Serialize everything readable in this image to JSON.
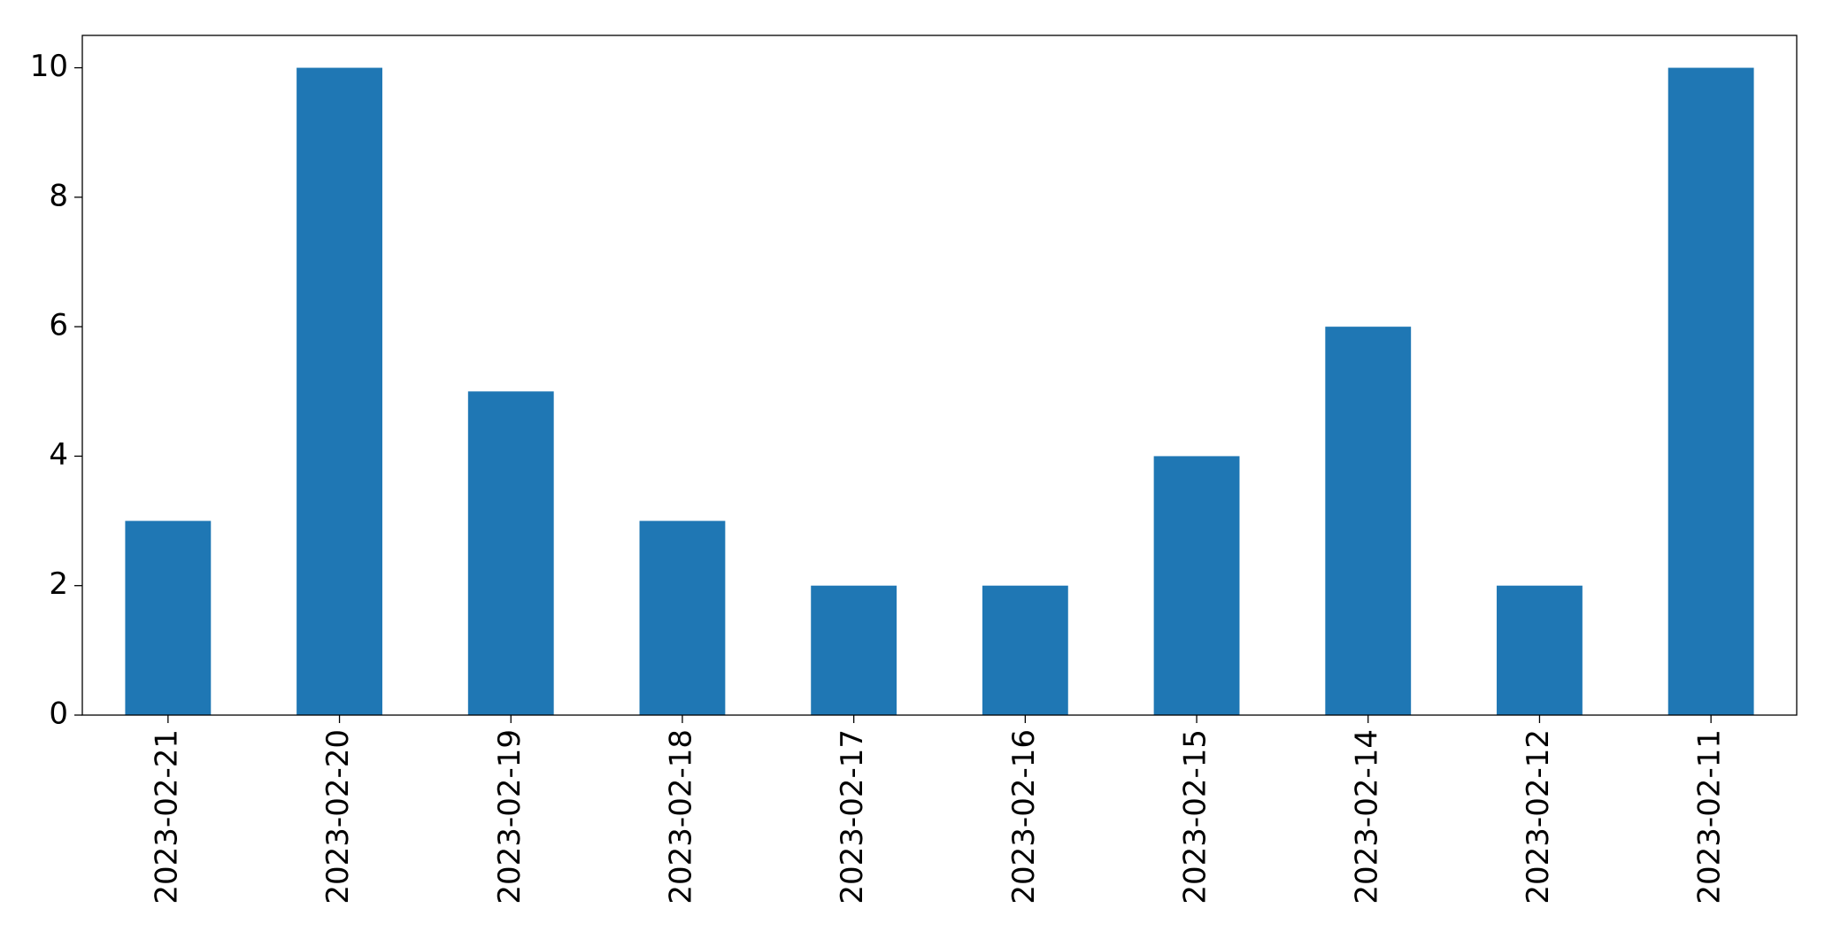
{
  "chart_data": {
    "type": "bar",
    "categories": [
      "2023-02-21",
      "2023-02-20",
      "2023-02-19",
      "2023-02-18",
      "2023-02-17",
      "2023-02-16",
      "2023-02-15",
      "2023-02-14",
      "2023-02-12",
      "2023-02-11"
    ],
    "values": [
      3,
      10,
      5,
      3,
      2,
      2,
      4,
      6,
      2,
      10
    ],
    "color": "#1f77b4",
    "ylim": [
      0,
      10.5
    ],
    "yticks": [
      0,
      2,
      4,
      6,
      8,
      10
    ],
    "grid": false
  }
}
